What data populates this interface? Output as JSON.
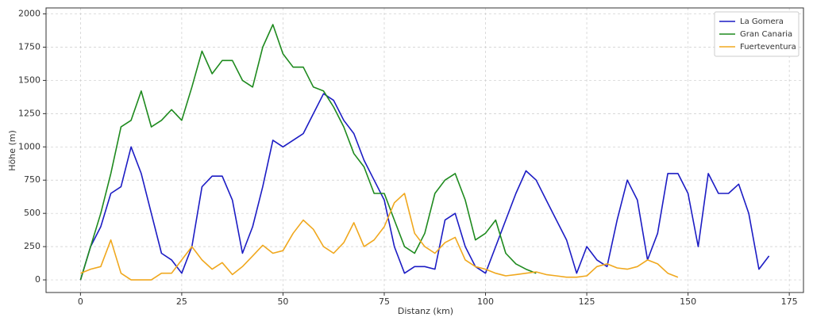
{
  "chart_data": {
    "type": "line",
    "xlabel": "Distanz (km)",
    "ylabel": "Höhe (m)",
    "x": [
      0,
      2.5,
      5,
      7.5,
      10,
      12.5,
      15,
      17.5,
      20,
      22.5,
      25,
      27.5,
      30,
      32.5,
      35,
      37.5,
      40,
      42.5,
      45,
      47.5,
      50,
      52.5,
      55,
      57.5,
      60,
      62.5,
      65,
      67.5,
      70,
      72.5,
      75,
      77.5,
      80,
      82.5,
      85,
      87.5,
      90,
      92.5,
      95,
      97.5,
      100,
      102.5,
      105,
      107.5,
      110,
      112.5,
      115,
      117.5,
      120,
      122.5,
      125,
      127.5,
      130,
      132.5,
      135,
      137.5,
      140,
      142.5,
      145,
      147.5,
      150,
      152.5,
      155,
      157.5,
      160,
      162.5,
      165,
      167.5,
      170
    ],
    "series": [
      {
        "name": "La Gomera",
        "color": "#1c1cc4",
        "values": [
          0,
          250,
          400,
          650,
          700,
          1000,
          800,
          500,
          200,
          150,
          50,
          250,
          700,
          780,
          780,
          600,
          200,
          400,
          700,
          1050,
          1000,
          1050,
          1100,
          1250,
          1400,
          1350,
          1200,
          1100,
          900,
          750,
          600,
          250,
          50,
          100,
          100,
          80,
          450,
          500,
          250,
          100,
          50,
          250,
          450,
          650,
          820,
          750,
          600,
          450,
          300,
          50,
          250,
          150,
          100,
          450,
          750,
          600,
          150,
          350,
          800,
          800,
          650,
          250,
          800,
          650,
          650,
          720,
          500,
          80,
          180
        ]
      },
      {
        "name": "Gran Canaria",
        "color": "#1e8a1e",
        "values": [
          0,
          250,
          500,
          800,
          1150,
          1200,
          1420,
          1150,
          1200,
          1280,
          1200,
          1450,
          1720,
          1550,
          1650,
          1650,
          1500,
          1450,
          1750,
          1920,
          1700,
          1600,
          1600,
          1450,
          1420,
          1300,
          1150,
          950,
          850,
          650,
          650,
          450,
          250,
          200,
          350,
          650,
          750,
          800,
          600,
          300,
          350,
          450,
          200,
          120,
          80,
          50,
          null,
          null,
          null,
          null,
          null,
          null,
          null,
          null,
          null,
          null,
          null,
          null,
          null,
          null,
          null,
          null,
          null,
          null,
          null,
          null,
          null,
          null,
          null
        ]
      },
      {
        "name": "Fuerteventura",
        "color": "#f0a81e",
        "values": [
          50,
          80,
          100,
          300,
          50,
          0,
          0,
          0,
          50,
          50,
          150,
          250,
          150,
          80,
          130,
          40,
          100,
          180,
          260,
          200,
          220,
          350,
          450,
          380,
          250,
          200,
          280,
          430,
          250,
          300,
          400,
          580,
          650,
          350,
          250,
          200,
          280,
          320,
          150,
          100,
          80,
          50,
          30,
          40,
          50,
          60,
          40,
          30,
          20,
          20,
          30,
          100,
          120,
          90,
          80,
          100,
          150,
          120,
          50,
          20,
          null,
          null,
          null,
          null,
          null,
          null,
          null,
          null,
          null
        ]
      }
    ],
    "xlim": [
      -8.5,
      178.5
    ],
    "ylim": [
      -95,
      2045
    ],
    "xticks": [
      0,
      25,
      50,
      75,
      100,
      125,
      150,
      175
    ],
    "yticks": [
      0,
      250,
      500,
      750,
      1000,
      1250,
      1500,
      1750,
      2000
    ],
    "grid": true,
    "legend": "upper right"
  }
}
